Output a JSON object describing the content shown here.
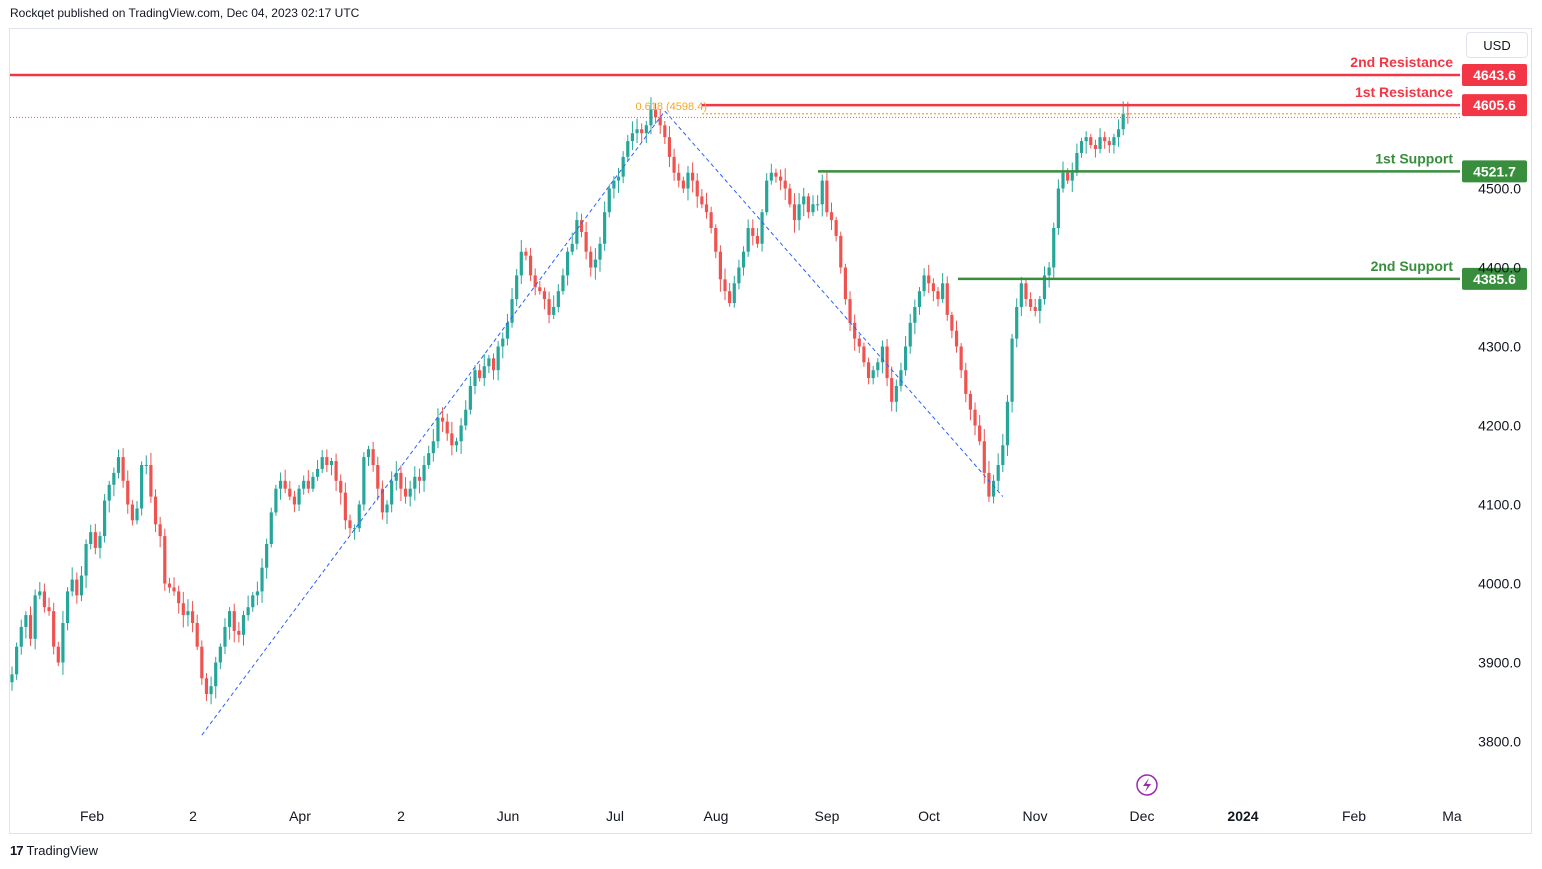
{
  "header": {
    "text": "Rockqet published on TradingView.com, Dec 04, 2023 02:17 UTC"
  },
  "currency": "USD",
  "footer": {
    "logo": "17",
    "brand": "TradingView"
  },
  "colors": {
    "up": "#26a69a",
    "down": "#ef5350",
    "resistance": "#f23645",
    "support": "#388e3c",
    "fib": "#f5a623",
    "trend": "#2962ff"
  },
  "chart_data": {
    "type": "candlestick",
    "y_axis": {
      "ticks": [
        "4500.0",
        "4400.0",
        "4300.0",
        "4200.0",
        "4100.0",
        "4000.0",
        "3900.0",
        "3800.0"
      ],
      "tick_values": [
        4500,
        4400,
        4300,
        4200,
        4100,
        4000,
        3900,
        3800
      ]
    },
    "x_axis": {
      "labels": [
        "Feb",
        "2",
        "Apr",
        "2",
        "Jun",
        "Jul",
        "Aug",
        "Sep",
        "Oct",
        "Nov",
        "Dec",
        "2024",
        "Feb",
        "Ma"
      ],
      "bold": [
        "2024"
      ]
    },
    "levels": [
      {
        "name": "2nd Resistance",
        "value": 4643.6,
        "tag": "4643.6",
        "kind": "resistance"
      },
      {
        "name": "1st Resistance",
        "value": 4605.6,
        "tag": "4605.6",
        "kind": "resistance"
      },
      {
        "name": "1st Support",
        "value": 4521.7,
        "tag": "4521.7",
        "kind": "support"
      },
      {
        "name": "2nd Support",
        "value": 4385.6,
        "tag": "4385.6",
        "kind": "support"
      }
    ],
    "fib": {
      "label": "0.618 (4598.4)",
      "value": 4598.4
    },
    "closes": [
      3885,
      3920,
      3945,
      3960,
      3930,
      3985,
      3990,
      3970,
      3965,
      3920,
      3900,
      3950,
      3990,
      4005,
      3985,
      4010,
      4050,
      4065,
      4045,
      4060,
      4105,
      4125,
      4140,
      4160,
      4130,
      4100,
      4080,
      4095,
      4150,
      4150,
      4110,
      4075,
      4060,
      4000,
      3995,
      3990,
      3975,
      3960,
      3965,
      3950,
      3920,
      3880,
      3860,
      3870,
      3900,
      3920,
      3945,
      3965,
      3940,
      3935,
      3960,
      3970,
      3985,
      3990,
      4020,
      4050,
      4090,
      4120,
      4130,
      4120,
      4110,
      4100,
      4120,
      4130,
      4120,
      4135,
      4145,
      4160,
      4150,
      4155,
      4130,
      4115,
      4080,
      4070,
      4070,
      4100,
      4160,
      4170,
      4150,
      4120,
      4090,
      4100,
      4130,
      4140,
      4120,
      4110,
      4120,
      4135,
      4130,
      4150,
      4165,
      4180,
      4210,
      4205,
      4190,
      4175,
      4180,
      4200,
      4220,
      4250,
      4270,
      4260,
      4275,
      4285,
      4270,
      4300,
      4310,
      4330,
      4360,
      4390,
      4420,
      4415,
      4390,
      4375,
      4370,
      4360,
      4340,
      4350,
      4370,
      4390,
      4420,
      4430,
      4460,
      4445,
      4420,
      4400,
      4410,
      4430,
      4470,
      4500,
      4510,
      4515,
      4540,
      4560,
      4570,
      4575,
      4570,
      4580,
      4600,
      4590,
      4580,
      4565,
      4540,
      4520,
      4510,
      4500,
      4520,
      4510,
      4490,
      4480,
      4470,
      4450,
      4420,
      4385,
      4370,
      4355,
      4380,
      4400,
      4420,
      4450,
      4440,
      4430,
      4470,
      4510,
      4520,
      4515,
      4510,
      4500,
      4480,
      4460,
      4480,
      4490,
      4470,
      4480,
      4480,
      4510,
      4470,
      4460,
      4440,
      4400,
      4360,
      4330,
      4310,
      4300,
      4280,
      4260,
      4270,
      4280,
      4300,
      4260,
      4230,
      4250,
      4270,
      4300,
      4330,
      4350,
      4370,
      4390,
      4380,
      4370,
      4360,
      4380,
      4340,
      4320,
      4300,
      4270,
      4240,
      4220,
      4200,
      4180,
      4140,
      4110,
      4130,
      4150,
      4175,
      4230,
      4310,
      4350,
      4380,
      4360,
      4350,
      4345,
      4360,
      4390,
      4400,
      4450,
      4500,
      4520,
      4510,
      4520,
      4545,
      4560,
      4565,
      4555,
      4550,
      4565,
      4560,
      4555,
      4565,
      4575,
      4595,
      4594
    ],
    "trendlines": [
      {
        "from": {
          "i": 41,
          "v": 3808
        },
        "to": {
          "i": 141,
          "v": 4598
        }
      },
      {
        "from": {
          "i": 141,
          "v": 4598
        },
        "to": {
          "i": 214,
          "v": 4110
        }
      }
    ]
  }
}
